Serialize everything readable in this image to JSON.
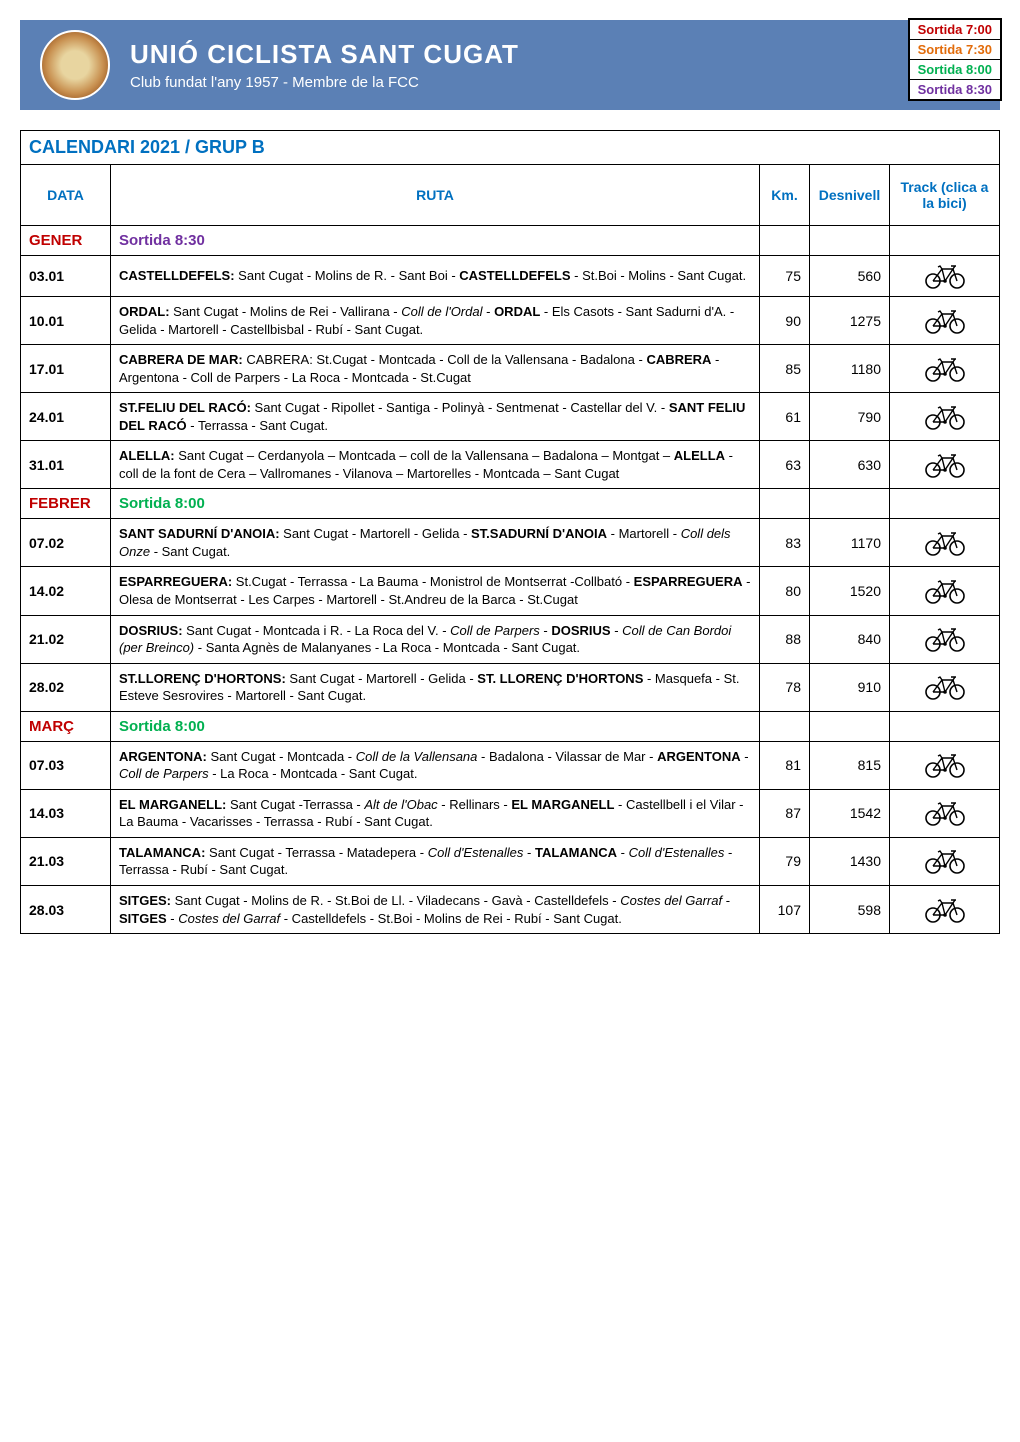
{
  "header": {
    "title": "UNIÓ CICLISTA SANT CUGAT",
    "subtitle": "Club fundat l'any 1957 - Membre de la FCC"
  },
  "sortida_legend": [
    {
      "label": "Sortida 7:00",
      "color": "#c00000"
    },
    {
      "label": "Sortida 7:30",
      "color": "#e26b0a"
    },
    {
      "label": "Sortida 8:00",
      "color": "#00b050"
    },
    {
      "label": "Sortida 8:30",
      "color": "#7030a0"
    }
  ],
  "calendar_title": "CALENDARI 2021 / GRUP B",
  "columns": {
    "data": "DATA",
    "ruta": "RUTA",
    "km": "Km.",
    "desnivell": "Desnivell",
    "track": "Track (clica a la bici)"
  },
  "colors": {
    "banner_bg": "#5b80b5",
    "heading_blue": "#0070c0",
    "month_red": "#c00000",
    "sortida_830": "#7030a0",
    "sortida_800": "#00b050",
    "border": "#000000",
    "bg": "#ffffff"
  },
  "months": [
    {
      "name": "GENER",
      "sortida": "Sortida 8:30",
      "sortida_color": "#7030a0",
      "rows": [
        {
          "date": "03.01",
          "ruta_html": "<b>CASTELLDEFELS:</b> Sant Cugat - Molins de R. - Sant Boi - <b>CASTELLDEFELS</b> - St.Boi - Molins - Sant Cugat.",
          "km": 75,
          "desn": 560
        },
        {
          "date": "10.01",
          "ruta_html": "<b>ORDAL:</b> Sant Cugat - Molins de Rei - Vallirana - <i>Coll de l'Ordal</i> - <b>ORDAL</b> - Els Casots - Sant Sadurni d'A. - Gelida - Martorell - Castellbisbal - Rubí - Sant Cugat.",
          "km": 90,
          "desn": 1275
        },
        {
          "date": "17.01",
          "ruta_html": "<b>CABRERA DE MAR:</b> CABRERA: St.Cugat - Montcada - Coll de la Vallensana - Badalona - <b>CABRERA</b> - Argentona - Coll de Parpers - La Roca - Montcada - St.Cugat",
          "km": 85,
          "desn": 1180
        },
        {
          "date": "24.01",
          "ruta_html": "<b>ST.FELIU DEL RACÓ:</b> Sant Cugat - Ripollet - Santiga - Polinyà - Sentmenat - Castellar del V. - <b>SANT FELIU DEL RACÓ</b> - Terrassa - Sant Cugat.",
          "km": 61,
          "desn": 790
        },
        {
          "date": "31.01",
          "ruta_html": "<b>ALELLA:</b> Sant Cugat – Cerdanyola – Montcada – coll de la Vallensana – Badalona – Montgat – <b>ALELLA</b> - coll de la font de Cera – Vallromanes - Vilanova – Martorelles - Montcada – Sant Cugat",
          "km": 63,
          "desn": 630
        }
      ]
    },
    {
      "name": "FEBRER",
      "sortida": "Sortida 8:00",
      "sortida_color": "#00b050",
      "rows": [
        {
          "date": "07.02",
          "ruta_html": "<b>SANT SADURNÍ D'ANOIA:</b> Sant Cugat - Martorell - Gelida - <b>ST.SADURNÍ D'ANOIA</b> - Martorell - <i>Coll dels Onze</i> - Sant Cugat.",
          "km": 83,
          "desn": 1170
        },
        {
          "date": "14.02",
          "ruta_html": "<b>ESPARREGUERA:</b> St.Cugat - Terrassa - La Bauma - Monistrol de Montserrat -Collbató - <b>ESPARREGUERA</b> - Olesa de Montserrat - Les Carpes - Martorell - St.Andreu de la Barca - St.Cugat",
          "km": 80,
          "desn": 1520
        },
        {
          "date": "21.02",
          "ruta_html": "<b>DOSRIUS:</b> Sant Cugat - Montcada i R. - La Roca del V. - <i>Coll de Parpers</i> - <b>DOSRIUS</b> - <i>Coll de Can Bordoi (per Breinco)</i> - Santa Agnès de Malanyanes - La Roca - Montcada - Sant Cugat.",
          "km": 88,
          "desn": 840
        },
        {
          "date": "28.02",
          "ruta_html": "<b>ST.LLORENÇ D'HORTONS:</b> Sant Cugat - Martorell - Gelida - <b>ST. LLORENÇ D'HORTONS</b> - Masquefa - St. Esteve Sesrovires - Martorell - Sant Cugat.",
          "km": 78,
          "desn": 910
        }
      ]
    },
    {
      "name": "MARÇ",
      "sortida": "Sortida 8:00",
      "sortida_color": "#00b050",
      "rows": [
        {
          "date": "07.03",
          "ruta_html": "<b>ARGENTONA:</b> Sant Cugat - Montcada - <i>Coll de la Vallensana</i> - Badalona - Vilassar de Mar - <b>ARGENTONA</b> - <i>Coll de Parpers</i> - La Roca - Montcada - Sant Cugat.",
          "km": 81,
          "desn": 815
        },
        {
          "date": "14.03",
          "ruta_html": "<b>EL MARGANELL:</b> Sant Cugat -Terrassa - <i>Alt de l'Obac</i> - Rellinars - <b>EL MARGANELL</b> - Castellbell i el Vilar - La Bauma - Vacarisses - Terrassa - Rubí - Sant Cugat.",
          "km": 87,
          "desn": 1542
        },
        {
          "date": "21.03",
          "ruta_html": "<b>TALAMANCA:</b> Sant Cugat - Terrassa - Matadepera - <i>Coll d'Estenalles</i> - <b>TALAMANCA</b> - <i>Coll d'Estenalles</i> - Terrassa - Rubí - Sant Cugat.",
          "km": 79,
          "desn": 1430
        },
        {
          "date": "28.03",
          "ruta_html": "<b>SITGES:</b> Sant Cugat - Molins de R. - St.Boi de Ll. - Viladecans - Gavà - Castelldefels - <i>Costes del Garraf</i> - <b>SITGES</b> - <i>Costes del Garraf</i> - Castelldefels - St.Boi - Molins de Rei - Rubí - Sant Cugat.",
          "km": 107,
          "desn": 598
        }
      ]
    }
  ]
}
